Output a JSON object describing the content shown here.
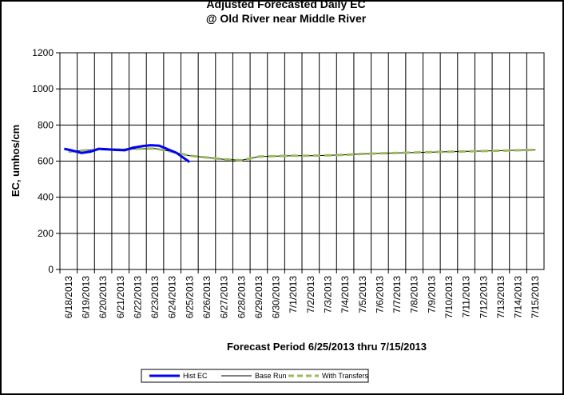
{
  "chart_data": {
    "type": "line",
    "title": "Adjusted Forecasted Daily EC",
    "subtitle": "@ Old River near Middle River",
    "xlabel": "Forecast Period  6/25/2013 thru 7/15/2013",
    "ylabel": "EC, umhos/cm",
    "ylim": [
      0,
      1200
    ],
    "yticks": [
      0,
      200,
      400,
      600,
      800,
      1000,
      1200
    ],
    "grid": true,
    "legend_position": "bottom",
    "categories": [
      "6/18/2013",
      "6/19/2013",
      "6/20/2013",
      "6/21/2013",
      "6/22/2013",
      "6/23/2013",
      "6/24/2013",
      "6/25/2013",
      "6/26/2013",
      "6/27/2013",
      "6/28/2013",
      "6/29/2013",
      "6/30/2013",
      "7/1/2013",
      "7/2/2013",
      "7/3/2013",
      "7/4/2013",
      "7/5/2013",
      "7/6/2013",
      "7/7/2013",
      "7/8/2013",
      "7/9/2013",
      "7/10/2013",
      "7/11/2013",
      "7/12/2013",
      "7/13/2013",
      "7/14/2013",
      "7/15/2013"
    ],
    "series": [
      {
        "name": "Hist EC",
        "color": "#0000ff",
        "style": "solid-thick",
        "x": [
          "6/18/2013",
          "6/18/2013",
          "6/19/2013",
          "6/19/2013",
          "6/20/2013",
          "6/20/2013",
          "6/21/2013",
          "6/21/2013",
          "6/22/2013",
          "6/22/2013",
          "6/23/2013",
          "6/23/2013",
          "6/24/2013",
          "6/24/2013",
          "6/25/2013"
        ],
        "values": [
          668,
          658,
          645,
          652,
          668,
          665,
          662,
          660,
          675,
          683,
          688,
          685,
          665,
          645,
          595
        ]
      },
      {
        "name": "Base Run",
        "color": "#000000",
        "style": "solid-thin",
        "x": [
          "6/18/2013",
          "6/19/2013",
          "6/20/2013",
          "6/21/2013",
          "6/22/2013",
          "6/23/2013",
          "6/24/2013",
          "6/25/2013",
          "6/26/2013",
          "6/27/2013",
          "6/28/2013",
          "6/29/2013",
          "6/30/2013",
          "7/1/2013",
          "7/2/2013",
          "7/3/2013",
          "7/4/2013",
          "7/5/2013",
          "7/6/2013",
          "7/7/2013",
          "7/8/2013",
          "7/9/2013",
          "7/10/2013",
          "7/11/2013",
          "7/12/2013",
          "7/13/2013",
          "7/14/2013",
          "7/15/2013"
        ],
        "values": [
          652,
          660,
          665,
          665,
          668,
          670,
          652,
          630,
          620,
          610,
          605,
          625,
          628,
          630,
          630,
          632,
          635,
          640,
          643,
          645,
          648,
          650,
          652,
          654,
          656,
          658,
          660,
          662
        ]
      },
      {
        "name": "With Transfers",
        "color": "#9bbb59",
        "style": "dashed",
        "x": [
          "6/18/2013",
          "6/19/2013",
          "6/20/2013",
          "6/21/2013",
          "6/22/2013",
          "6/23/2013",
          "6/24/2013",
          "6/25/2013",
          "6/26/2013",
          "6/27/2013",
          "6/28/2013",
          "6/29/2013",
          "6/30/2013",
          "7/1/2013",
          "7/2/2013",
          "7/3/2013",
          "7/4/2013",
          "7/5/2013",
          "7/6/2013",
          "7/7/2013",
          "7/8/2013",
          "7/9/2013",
          "7/10/2013",
          "7/11/2013",
          "7/12/2013",
          "7/13/2013",
          "7/14/2013",
          "7/15/2013"
        ],
        "values": [
          652,
          660,
          665,
          665,
          668,
          670,
          652,
          630,
          620,
          610,
          605,
          625,
          628,
          630,
          630,
          632,
          635,
          640,
          643,
          645,
          648,
          650,
          652,
          654,
          656,
          658,
          660,
          662
        ]
      }
    ]
  }
}
